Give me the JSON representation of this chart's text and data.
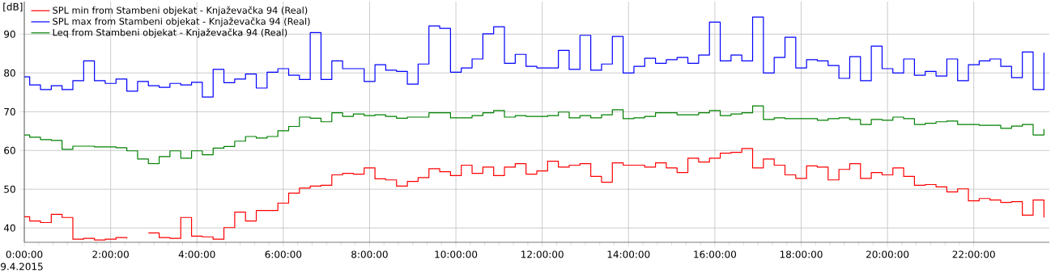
{
  "chart_data": {
    "type": "step",
    "ylabel": "[dB]",
    "x": [
      0,
      0.125,
      0.375,
      0.625,
      0.875,
      1.125,
      1.375,
      1.625,
      1.875,
      2.125,
      2.375,
      2.625,
      2.875,
      3.125,
      3.375,
      3.625,
      3.875,
      4.125,
      4.375,
      4.625,
      4.875,
      5.125,
      5.375,
      5.625,
      5.875,
      6.125,
      6.375,
      6.625,
      6.875,
      7.125,
      7.375,
      7.625,
      7.875,
      8.125,
      8.375,
      8.625,
      8.875,
      9.125,
      9.375,
      9.625,
      9.875,
      10.125,
      10.375,
      10.625,
      10.875,
      11.125,
      11.375,
      11.625,
      11.875,
      12.125,
      12.375,
      12.625,
      12.875,
      13.125,
      13.375,
      13.625,
      13.875,
      14.125,
      14.375,
      14.625,
      14.875,
      15.125,
      15.375,
      15.625,
      15.875,
      16.125,
      16.375,
      16.625,
      16.875,
      17.125,
      17.375,
      17.625,
      17.875,
      18.125,
      18.375,
      18.625,
      18.875,
      19.125,
      19.375,
      19.625,
      19.875,
      20.125,
      20.375,
      20.625,
      20.875,
      21.125,
      21.375,
      21.625,
      21.875,
      22.125,
      22.375,
      22.625,
      22.875,
      23.125,
      23.375,
      23.625
    ],
    "series": [
      {
        "name": "SPL min from Stambeni objekat - Knjaževačka 94 (Real)",
        "color": "#ff0000",
        "values": [
          42.9,
          41.8,
          41.4,
          43.5,
          42.7,
          37.1,
          37.3,
          36.9,
          37.1,
          37.5,
          37.3,
          null,
          38.7,
          37.5,
          37.3,
          42.7,
          37.9,
          37.7,
          37.1,
          40.1,
          44.1,
          41.8,
          44.5,
          44.5,
          46.4,
          49.0,
          50.3,
          50.8,
          51.0,
          53.7,
          54.1,
          53.9,
          55.5,
          52.7,
          52.4,
          50.8,
          52.0,
          53.0,
          55.3,
          54.5,
          53.5,
          56.2,
          54.1,
          55.7,
          53.5,
          55.7,
          56.6,
          53.9,
          54.7,
          57.2,
          55.7,
          56.2,
          56.6,
          53.3,
          51.8,
          56.8,
          56.2,
          56.2,
          55.7,
          56.8,
          55.5,
          54.3,
          58.0,
          57.0,
          58.0,
          59.3,
          59.5,
          60.5,
          55.5,
          57.8,
          56.2,
          53.7,
          52.8,
          56.0,
          55.7,
          52.4,
          55.1,
          56.6,
          52.8,
          54.3,
          53.7,
          55.5,
          53.3,
          51.0,
          51.2,
          50.6,
          49.3,
          50.1,
          47.0,
          47.6,
          47.2,
          46.6,
          46.8,
          43.3,
          47.2,
          42.7
        ]
      },
      {
        "name": "SPL max from Stambeni objekat - Knjaževačka 94 (Real)",
        "color": "#0000ff",
        "values": [
          79.0,
          76.9,
          75.7,
          76.7,
          75.7,
          78.0,
          83.1,
          78.0,
          77.3,
          78.4,
          75.3,
          77.8,
          76.7,
          76.3,
          77.3,
          76.9,
          77.6,
          73.8,
          80.9,
          77.5,
          78.4,
          79.7,
          76.1,
          80.2,
          81.1,
          79.4,
          78.3,
          90.4,
          78.3,
          83.1,
          81.1,
          81.1,
          77.8,
          82.1,
          80.7,
          80.4,
          77.1,
          82.3,
          92.1,
          91.5,
          80.2,
          81.3,
          83.6,
          90.1,
          91.9,
          82.5,
          84.8,
          81.7,
          81.3,
          81.3,
          85.8,
          80.9,
          89.7,
          80.7,
          82.3,
          89.4,
          80.0,
          81.7,
          83.8,
          82.5,
          83.4,
          84.0,
          82.5,
          84.6,
          93.1,
          83.1,
          84.6,
          83.1,
          94.4,
          80.0,
          84.0,
          89.2,
          81.3,
          83.4,
          83.1,
          81.9,
          78.6,
          84.2,
          78.0,
          86.9,
          81.1,
          80.0,
          83.6,
          79.4,
          80.4,
          79.2,
          83.6,
          78.0,
          82.1,
          83.1,
          83.6,
          81.7,
          78.8,
          85.4,
          75.7,
          85.2
        ]
      },
      {
        "name": "Leq from Stambeni objekat - Knjaževačka 94 (Real)",
        "color": "#008000",
        "values": [
          64.0,
          63.4,
          62.8,
          62.6,
          60.3,
          61.1,
          61.1,
          60.9,
          60.9,
          60.7,
          59.9,
          57.8,
          56.6,
          58.4,
          59.9,
          58.0,
          59.9,
          58.9,
          60.6,
          61.0,
          62.4,
          63.6,
          63.2,
          63.6,
          65.1,
          66.2,
          68.6,
          68.3,
          67.4,
          69.7,
          68.8,
          69.4,
          69.0,
          69.2,
          68.8,
          68.3,
          68.6,
          68.6,
          69.7,
          69.7,
          68.4,
          68.4,
          69.0,
          69.7,
          70.3,
          68.6,
          69.0,
          68.8,
          68.8,
          69.0,
          69.9,
          68.4,
          69.0,
          68.4,
          69.2,
          70.5,
          68.2,
          68.4,
          68.8,
          69.7,
          69.7,
          69.2,
          69.2,
          69.7,
          70.3,
          69.0,
          69.4,
          69.7,
          71.5,
          68.0,
          68.4,
          68.2,
          68.2,
          68.2,
          67.8,
          68.2,
          68.4,
          68.0,
          66.7,
          68.0,
          67.8,
          68.6,
          68.2,
          66.7,
          67.0,
          67.4,
          67.6,
          66.7,
          66.7,
          66.5,
          66.5,
          65.7,
          66.3,
          66.7,
          64.0,
          65.5
        ]
      }
    ],
    "xlim": [
      0,
      23.75
    ],
    "xticks": [
      {
        "value": 0,
        "label": "0:00:00"
      },
      {
        "value": 2,
        "label": "2:00:00"
      },
      {
        "value": 4,
        "label": "4:00:00"
      },
      {
        "value": 6,
        "label": "6:00:00"
      },
      {
        "value": 8,
        "label": "8:00:00"
      },
      {
        "value": 10,
        "label": "10:00:00"
      },
      {
        "value": 12,
        "label": "12:00:00"
      },
      {
        "value": 14,
        "label": "14:00:00"
      },
      {
        "value": 16,
        "label": "16:00:00"
      },
      {
        "value": 18,
        "label": "18:00:00"
      },
      {
        "value": 20,
        "label": "20:00:00"
      },
      {
        "value": 22,
        "label": "22:00:00"
      }
    ],
    "ylim": [
      36.3,
      98.4
    ],
    "yticks": [
      40,
      50,
      60,
      70,
      80,
      90
    ],
    "grid": true,
    "legend": "top left",
    "annotations": [
      "9.4.2015"
    ]
  }
}
